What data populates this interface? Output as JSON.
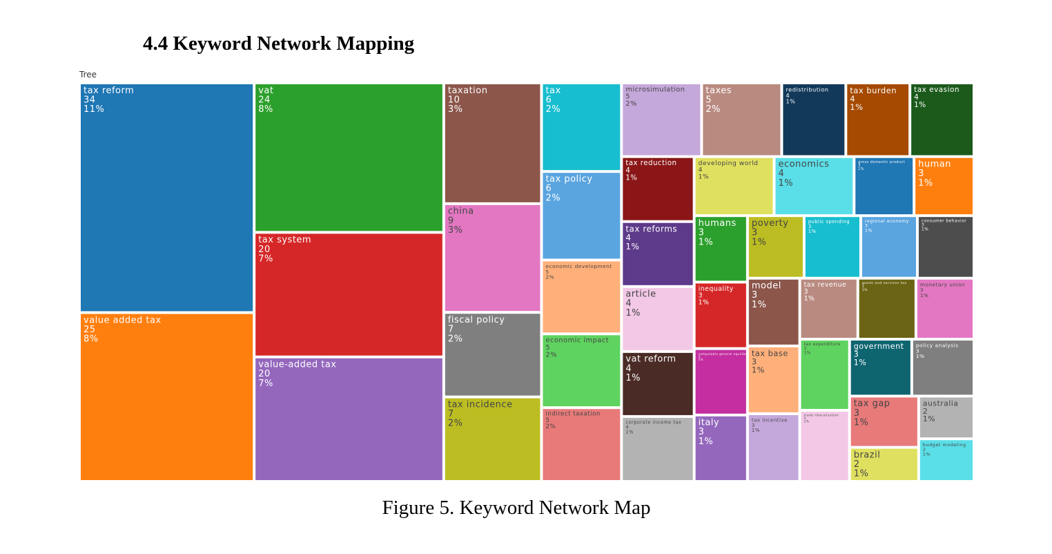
{
  "heading": "4.4  Keyword Network Mapping",
  "caption": "Figure 5. Keyword Network Map",
  "chart_data": {
    "type": "treemap",
    "title": "Tree",
    "categories": [
      "tax reform",
      "value added tax",
      "vat",
      "tax system",
      "value-added tax",
      "taxation",
      "china",
      "fiscal policy",
      "tax incidence",
      "tax",
      "tax policy",
      "economic development",
      "economic impact",
      "indirect taxation",
      "microsimulation",
      "taxes",
      "redistribution",
      "tax burden",
      "tax evasion",
      "tax reduction",
      "tax reforms",
      "article",
      "vat reform",
      "corporate income tax",
      "developing world",
      "economics",
      "gross domestic product",
      "human",
      "humans",
      "inequality",
      "computable general equilibrium analysis",
      "italy",
      "poverty",
      "public spending",
      "regional economy",
      "consumer behavior",
      "model",
      "tax base",
      "tax incentive",
      "tax revenue",
      "goods and services tax",
      "monetary union",
      "tax expenditure",
      "trade liberalization",
      "government",
      "policy analysis",
      "tax gap",
      "brazil",
      "australia",
      "budget modeling"
    ],
    "values": [
      34,
      25,
      24,
      20,
      20,
      10,
      9,
      7,
      7,
      6,
      6,
      5,
      5,
      5,
      5,
      5,
      4,
      4,
      4,
      4,
      4,
      4,
      4,
      4,
      4,
      4,
      3,
      3,
      3,
      3,
      3,
      3,
      3,
      3,
      3,
      3,
      3,
      3,
      3,
      3,
      3,
      3,
      3,
      3,
      3,
      3,
      3,
      2,
      2,
      2
    ],
    "share_labels": [
      "11%",
      "8%",
      "8%",
      "7%",
      "7%",
      "3%",
      "3%",
      "2%",
      "2%",
      "2%",
      "2%",
      "2%",
      "2%",
      "2%",
      "2%",
      "2%",
      "1%",
      "1%",
      "1%",
      "1%",
      "1%",
      "1%",
      "1%",
      "1%",
      "1%",
      "1%",
      "1%",
      "1%",
      "1%",
      "1%",
      "1%",
      "1%",
      "1%",
      "1%",
      "1%",
      "1%",
      "1%",
      "1%",
      "1%",
      "1%",
      "1%",
      "1%",
      "1%",
      "1%",
      "1%",
      "1%",
      "1%",
      "1%",
      "1%",
      "1%"
    ],
    "colors": [
      "#1f77b4",
      "#ff7f0e",
      "#2ca02c",
      "#d62728",
      "#9467bd",
      "#8c564b",
      "#e377c2",
      "#7f7f7f",
      "#bcbd22",
      "#17becf",
      "#5aa5e0",
      "#ffb07a",
      "#5fd35f",
      "#e87a7a",
      "#c5a8db",
      "#b98a80",
      "#12395a",
      "#a54a00",
      "#1b5a1b",
      "#8a1618",
      "#5e3a8a",
      "#f2c8e6",
      "#4a2b26",
      "#b3b3b3",
      "#e0e060",
      "#5adfe8",
      "#1f77b4",
      "#ff7f0e",
      "#2ca02c",
      "#d62728",
      "#c42ea0",
      "#9467bd",
      "#bcbd22",
      "#17becf",
      "#5aa5e0",
      "#4d4d4d",
      "#8c564b",
      "#ffb07a",
      "#c5a8db",
      "#b98a80",
      "#6b6414",
      "#e377c2",
      "#5fd35f",
      "#f2c8e6",
      "#0e6570",
      "#7f7f7f",
      "#e87a7a",
      "#e0e060",
      "#b3b3b3",
      "#5adfe8"
    ]
  }
}
